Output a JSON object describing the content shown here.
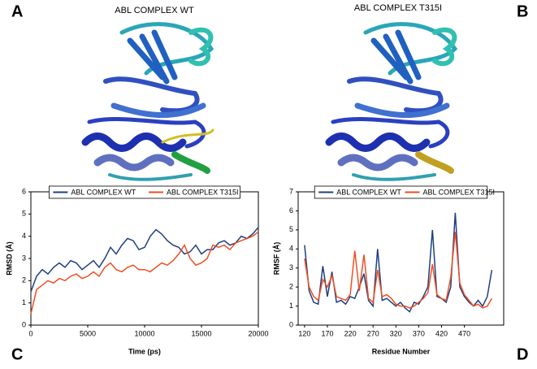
{
  "panels": {
    "labels": [
      "A",
      "B",
      "C",
      "D"
    ],
    "structure_titles": [
      "ABL COMPLEX WT",
      "ABL COMPLEX T315I"
    ]
  },
  "chart_data": [
    {
      "type": "line",
      "x_label": "Time (ps)",
      "y_label": "RMSD (Å)",
      "xlim": [
        0,
        20000
      ],
      "xticks": [
        0,
        5000,
        10000,
        15000,
        20000
      ],
      "ylim": [
        0,
        6
      ],
      "yticks": [
        0,
        1,
        2,
        3,
        4,
        5,
        6
      ],
      "legend": "top",
      "grid": false,
      "x": [
        0,
        500,
        1000,
        1500,
        2000,
        2500,
        3000,
        3500,
        4000,
        4500,
        5000,
        5500,
        6000,
        6500,
        7000,
        7500,
        8000,
        8500,
        9000,
        9500,
        10000,
        10500,
        11000,
        11500,
        12000,
        12500,
        13000,
        13500,
        14000,
        14500,
        15000,
        15500,
        16000,
        16500,
        17000,
        17500,
        18000,
        18500,
        19000,
        19500,
        20000
      ],
      "series": [
        {
          "name": "ABL COMPLEX WT",
          "color": "#1f3f80",
          "values": [
            1.5,
            2.2,
            2.5,
            2.3,
            2.6,
            2.8,
            2.6,
            2.9,
            2.8,
            2.5,
            2.7,
            2.9,
            2.6,
            3.0,
            3.5,
            3.2,
            3.6,
            3.9,
            3.8,
            3.4,
            3.5,
            4.0,
            4.3,
            4.1,
            3.8,
            3.6,
            3.5,
            3.2,
            3.3,
            3.6,
            3.2,
            3.4,
            3.4,
            3.7,
            3.8,
            3.6,
            3.7,
            4.0,
            3.9,
            4.1,
            4.4
          ]
        },
        {
          "name": "ABL COMPLEX T315I",
          "color": "#f04e23",
          "values": [
            0.5,
            1.6,
            1.8,
            2.0,
            1.9,
            2.1,
            2.0,
            2.2,
            2.3,
            2.1,
            2.2,
            2.4,
            2.2,
            2.6,
            2.8,
            2.5,
            2.4,
            2.6,
            2.7,
            2.5,
            2.5,
            2.4,
            2.6,
            2.8,
            2.7,
            2.9,
            3.2,
            3.6,
            3.0,
            2.7,
            2.8,
            3.0,
            3.6,
            3.5,
            3.6,
            3.4,
            3.7,
            3.8,
            3.9,
            4.0,
            4.2
          ]
        }
      ]
    },
    {
      "type": "line",
      "x_label": "Residue Number",
      "y_label": "RMSF (Å)",
      "xlim": [
        106,
        556
      ],
      "xticks": [
        120,
        170,
        220,
        270,
        320,
        370,
        420,
        470
      ],
      "ylim": [
        0,
        7
      ],
      "yticks": [
        0,
        1,
        2,
        3,
        4,
        5,
        6,
        7
      ],
      "legend": "top",
      "grid": false,
      "x": [
        120,
        130,
        140,
        150,
        160,
        170,
        180,
        190,
        200,
        210,
        220,
        230,
        240,
        250,
        260,
        270,
        280,
        290,
        300,
        310,
        320,
        330,
        340,
        350,
        360,
        370,
        380,
        390,
        400,
        410,
        420,
        430,
        440,
        450,
        460,
        470,
        480,
        490,
        500,
        510,
        520,
        530
      ],
      "series": [
        {
          "name": "ABL COMPLEX WT",
          "color": "#1f3f80",
          "values": [
            4.2,
            1.8,
            1.2,
            1.1,
            3.1,
            1.5,
            2.8,
            1.2,
            1.3,
            1.1,
            1.5,
            1.4,
            2.0,
            2.7,
            1.3,
            1.0,
            4.0,
            1.3,
            1.4,
            1.2,
            1.0,
            1.2,
            0.9,
            0.7,
            1.2,
            1.1,
            1.5,
            2.0,
            5.0,
            1.5,
            1.4,
            1.2,
            2.0,
            5.9,
            2.0,
            1.5,
            1.2,
            1.0,
            1.3,
            1.0,
            1.5,
            2.9
          ]
        },
        {
          "name": "ABL COMPLEX T315I",
          "color": "#f04e23",
          "values": [
            3.5,
            2.0,
            1.5,
            1.3,
            2.4,
            2.0,
            2.6,
            1.5,
            1.4,
            1.3,
            1.6,
            3.9,
            1.8,
            3.7,
            1.4,
            1.2,
            2.9,
            1.5,
            1.6,
            1.4,
            1.1,
            1.0,
            1.0,
            0.9,
            1.0,
            1.2,
            1.4,
            1.7,
            3.2,
            1.6,
            1.4,
            1.3,
            2.5,
            4.9,
            2.2,
            1.6,
            1.3,
            1.0,
            1.1,
            0.9,
            1.0,
            1.4
          ]
        }
      ]
    }
  ]
}
